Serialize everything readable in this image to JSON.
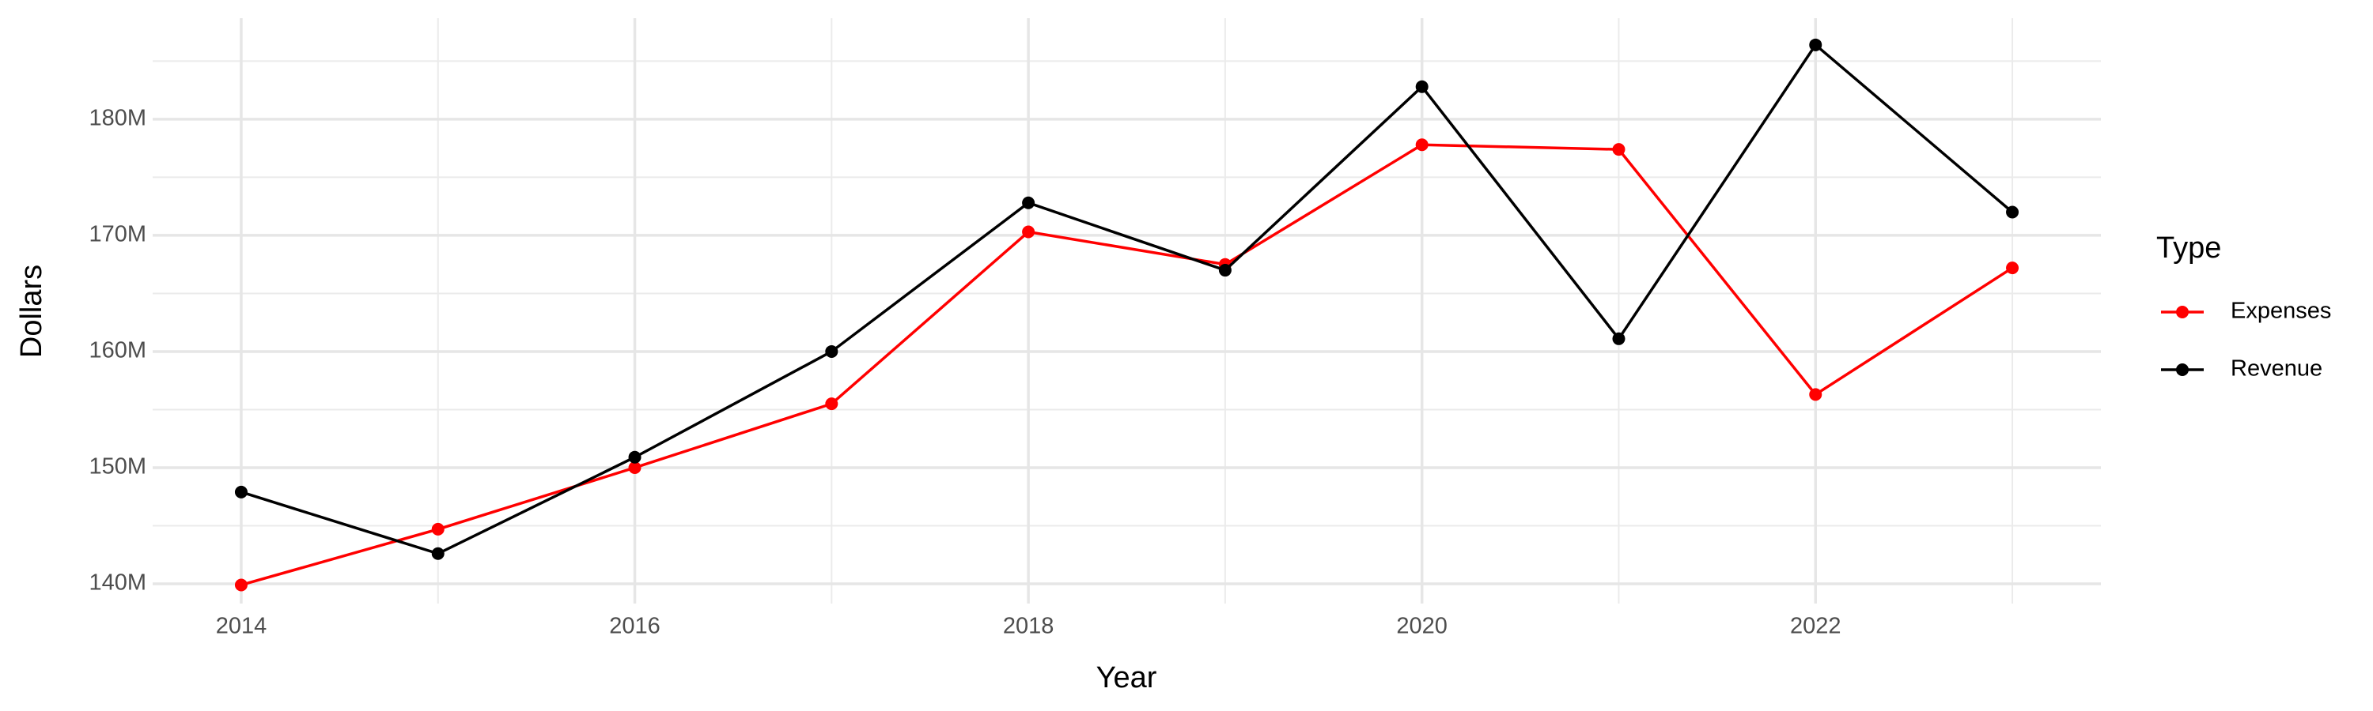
{
  "chart_data": {
    "type": "line",
    "x_label": "Year",
    "y_label": "Dollars",
    "legend_title": "Type",
    "x": [
      2014,
      2015,
      2016,
      2017,
      2018,
      2019,
      2020,
      2021,
      2022,
      2023
    ],
    "series": [
      {
        "name": "Expenses",
        "color": "#ff0000",
        "values": [
          139900000,
          144700000,
          150000000,
          155500000,
          170300000,
          167500000,
          177800000,
          177400000,
          156300000,
          167200000
        ]
      },
      {
        "name": "Revenue",
        "color": "#000000",
        "values": [
          147900000,
          142600000,
          150900000,
          160000000,
          172800000,
          167000000,
          182800000,
          161100000,
          186400000,
          172000000
        ]
      }
    ],
    "xlim": [
      2013.55,
      2023.45
    ],
    "xticks": [
      2014,
      2016,
      2018,
      2020,
      2022
    ],
    "ylim": [
      138300000,
      188700000
    ],
    "yticks": [
      {
        "value": 140000000,
        "label": "140M"
      },
      {
        "value": 150000000,
        "label": "150M"
      },
      {
        "value": 160000000,
        "label": "160M"
      },
      {
        "value": 170000000,
        "label": "170M"
      },
      {
        "value": 180000000,
        "label": "180M"
      }
    ],
    "grid": true,
    "legend": "right"
  }
}
